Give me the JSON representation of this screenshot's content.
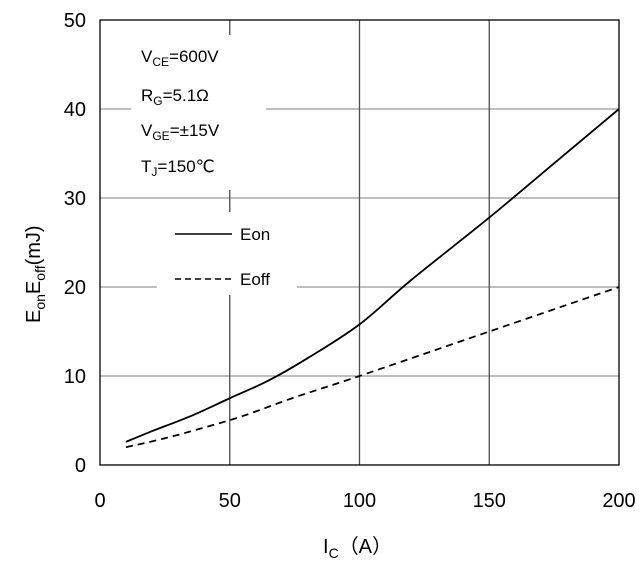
{
  "chart_data": {
    "type": "line",
    "xlabel": {
      "main": "I",
      "sub": "C",
      "suffix": "（A）"
    },
    "ylabel": {
      "p1": "E",
      "s1": "on",
      "p2": "E",
      "s2": "off",
      "p3": "(mJ)"
    },
    "xlim": [
      0,
      200
    ],
    "ylim": [
      0,
      50
    ],
    "x_ticks": [
      "0",
      "50",
      "100",
      "150",
      "200"
    ],
    "y_ticks": [
      "0",
      "10",
      "20",
      "30",
      "40",
      "50"
    ],
    "grid": true,
    "legend_position": "left",
    "annotations": [
      {
        "p": "V",
        "s": "CE",
        "r": "=600V"
      },
      {
        "p": "R",
        "s": "G",
        "r": "=5.1Ω"
      },
      {
        "p": "V",
        "s": "GE",
        "r": "=±15V"
      },
      {
        "p": "T",
        "s": "J",
        "r": "=150℃"
      }
    ],
    "series": [
      {
        "name": "Eon",
        "style": "solid",
        "color": "#000000",
        "x": [
          10,
          20,
          35,
          50,
          65,
          80,
          100,
          120,
          150,
          175,
          200
        ],
        "y": [
          2.6,
          3.8,
          5.5,
          7.5,
          9.5,
          12.0,
          15.8,
          20.8,
          27.8,
          33.9,
          40.0
        ]
      },
      {
        "name": "Eoff",
        "style": "dashed",
        "color": "#000000",
        "x": [
          10,
          25,
          40,
          55,
          75,
          100,
          150,
          200
        ],
        "y": [
          2.0,
          3.0,
          4.2,
          5.5,
          7.6,
          10.0,
          15.0,
          20.0
        ]
      }
    ]
  }
}
